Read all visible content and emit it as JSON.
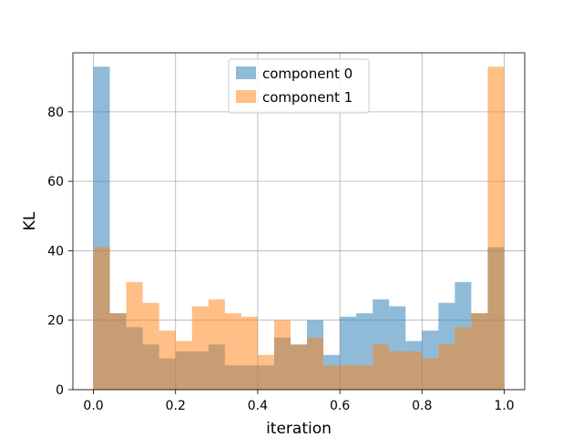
{
  "chart_data": {
    "type": "bar",
    "xlabel": "iteration",
    "ylabel": "KL",
    "xlim": [
      -0.05,
      1.05
    ],
    "ylim": [
      0,
      97
    ],
    "xticks": [
      0.0,
      0.2,
      0.4,
      0.6,
      0.8,
      1.0
    ],
    "xtick_labels": [
      "0.0",
      "0.2",
      "0.4",
      "0.6",
      "0.8",
      "1.0"
    ],
    "yticks": [
      0,
      20,
      40,
      60,
      80
    ],
    "ytick_labels": [
      "0",
      "20",
      "40",
      "60",
      "80"
    ],
    "grid": true,
    "legend_position": "upper center",
    "bin_edges": [
      0.0,
      0.04,
      0.08,
      0.12,
      0.16,
      0.2,
      0.24,
      0.28,
      0.32,
      0.36,
      0.4,
      0.44,
      0.48,
      0.52,
      0.56,
      0.6,
      0.64,
      0.68,
      0.72,
      0.76,
      0.8,
      0.84,
      0.88,
      0.92,
      0.96,
      1.0
    ],
    "series": [
      {
        "name": "component 0",
        "color": "#1f77b4",
        "values": [
          93,
          22,
          18,
          13,
          9,
          11,
          11,
          13,
          7,
          7,
          7,
          15,
          13,
          20,
          10,
          21,
          22,
          26,
          24,
          14,
          17,
          25,
          31,
          22,
          41
        ]
      },
      {
        "name": "component 1",
        "color": "#ff7f0e",
        "values": [
          41,
          22,
          31,
          25,
          17,
          14,
          24,
          26,
          22,
          21,
          10,
          20,
          13,
          15,
          7,
          7,
          7,
          13,
          11,
          11,
          9,
          13,
          18,
          22,
          93
        ]
      }
    ]
  }
}
